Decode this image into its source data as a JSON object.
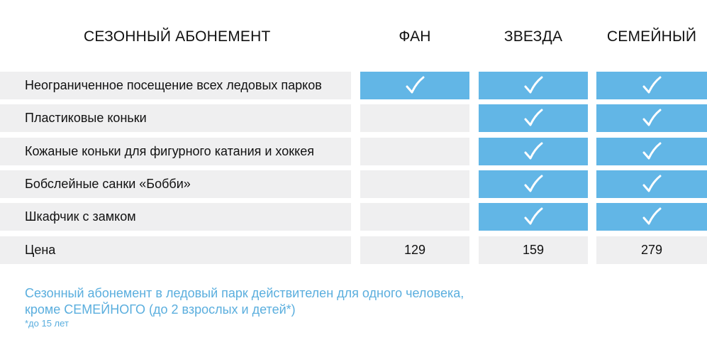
{
  "header": {
    "title": "СЕЗОННЫЙ АБОНЕМЕНТ",
    "plans": [
      "ФАН",
      "ЗВЕЗДА",
      "СЕМЕЙНЫЙ"
    ]
  },
  "features": [
    {
      "label": "Неограниченное посещение всех ледовых парков",
      "fan": true,
      "zvezda": true,
      "family": true
    },
    {
      "label": "Пластиковые коньки",
      "fan": false,
      "zvezda": true,
      "family": true
    },
    {
      "label": "Кожаные коньки для фигурного катания и хоккея",
      "fan": false,
      "zvezda": true,
      "family": true
    },
    {
      "label": "Бобслейные санки «Бобби»",
      "fan": false,
      "zvezda": true,
      "family": true
    },
    {
      "label": "Шкафчик с замком",
      "fan": false,
      "zvezda": true,
      "family": true
    }
  ],
  "price": {
    "label": "Цена",
    "fan": "129",
    "zvezda": "159",
    "family": "279"
  },
  "notes": {
    "line1": "Сезонный абонемент в ледовый парк действителен для одного человека,",
    "line2": "кроме СЕМЕЙНОГО (до 2 взрослых и детей*)",
    "footnote": "*до 15 лет"
  },
  "colors": {
    "included": "#62b6e6",
    "not_included": "#efeff0",
    "note_text": "#5aaede",
    "check": "#ffffff"
  },
  "icons": {
    "included": "checkmark-icon"
  }
}
